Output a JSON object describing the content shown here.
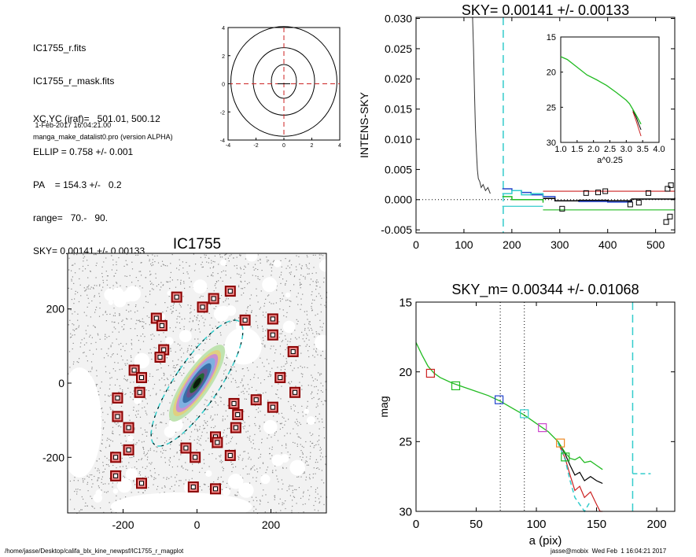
{
  "info": {
    "lines": [
      "IC1755_r.fits",
      "IC1755_r_mask.fits",
      "XC,YC (iraf)=   501.01, 500.12",
      "ELLIP = 0.758 +/- 0.001",
      "PA    = 154.3 +/-   0.2",
      "range=   70.-   90.",
      "SKY= 0.00141 +/- 0.00133"
    ],
    "date": " 1-Feb-2017 16:04:21.00",
    "program": "manga_make_datalist0.pro (version ALPHA)"
  },
  "footer": {
    "path": "/home/jasse/Desktop/califa_blx_kine_newpsf/IC1755_r_magplot",
    "user": "jasse@mobix  Wed Feb  1 16:04:21 2017"
  },
  "colors": {
    "black": "#000000",
    "red": "#cc2222",
    "cyan": "#33cccc",
    "green": "#22bb22",
    "blue": "#2244cc",
    "magenta": "#cc44cc",
    "orange": "#ee8822",
    "darkred": "#8b0000"
  },
  "chart_data": [
    {
      "id": "contour",
      "type": "contour",
      "xlim": [
        -4,
        4
      ],
      "ylim": [
        -4,
        4
      ],
      "xticks": [
        "-4",
        "-2",
        "0",
        "2",
        "4"
      ],
      "yticks": [
        "-4",
        "-2",
        "0",
        "2",
        "4"
      ],
      "ellipses": [
        {
          "rx": 0.9,
          "ry": 1.2
        },
        {
          "rx": 2.2,
          "ry": 2.4
        },
        {
          "rx": 3.8,
          "ry": 3.9
        }
      ],
      "crosshair": [
        0,
        0
      ]
    },
    {
      "id": "sky",
      "type": "line",
      "title": "SKY= 0.00141 +/- 0.00133",
      "ylabel": "INTENS-SKY",
      "xlim": [
        0,
        540
      ],
      "ylim": [
        -0.0055,
        0.03
      ],
      "xticks": [
        "0",
        "100",
        "200",
        "300",
        "400",
        "500"
      ],
      "yticks": [
        "-0.005",
        "0.000",
        "0.005",
        "0.010",
        "0.015",
        "0.020",
        "0.025",
        "0.030"
      ],
      "drop_curve": {
        "x": [
          118,
          120,
          122,
          124,
          126,
          128,
          130,
          133,
          136,
          140,
          145,
          150,
          155
        ],
        "y": [
          0.0305,
          0.025,
          0.018,
          0.012,
          0.008,
          0.005,
          0.0035,
          0.003,
          0.002,
          0.0025,
          0.0015,
          0.002,
          0.001
        ]
      },
      "sky_vline": 182,
      "profiles": [
        {
          "color": "blue",
          "x": [
            180,
            200,
            220,
            240,
            265,
            290,
            340,
            400,
            440,
            450
          ],
          "y": [
            0.0018,
            0.0015,
            0.0012,
            0.0008,
            0.0005,
            -0.0002,
            -0.0003,
            -0.0004,
            -0.0003,
            0.0
          ]
        },
        {
          "color": "cyan",
          "x": [
            180,
            200,
            220,
            240,
            265
          ],
          "y": [
            0.001,
            0.0015,
            0.0008,
            0.001,
            0.0005
          ]
        },
        {
          "color": "black",
          "x": [
            265,
            290,
            340,
            400,
            450,
            540
          ],
          "y": [
            0.0002,
            -0.0002,
            -0.0001,
            -0.0002,
            0.0001,
            0.0003
          ]
        },
        {
          "color": "green",
          "x": [
            180,
            200,
            265
          ],
          "y": [
            0.0005,
            0.0,
            -0.0005
          ]
        }
      ],
      "hlines": [
        {
          "color": "red",
          "y": 0.0014,
          "x": [
            265,
            540
          ]
        },
        {
          "color": "green",
          "y": -0.0017,
          "x": [
            265,
            540
          ]
        },
        {
          "color": "cyan",
          "y": -0.0011,
          "x": [
            180,
            265
          ]
        }
      ],
      "squares": [
        [
          395,
          0.0014
        ],
        [
          485,
          0.0011
        ],
        [
          525,
          0.0018
        ],
        [
          532,
          0.0024
        ],
        [
          447,
          -0.0008
        ],
        [
          380,
          0.0012
        ],
        [
          355,
          0.0011
        ],
        [
          305,
          -0.0015
        ],
        [
          465,
          -0.0005
        ],
        [
          530,
          -0.0028
        ],
        [
          522,
          -0.0037
        ]
      ],
      "inset": {
        "xlabel": "a^0.25",
        "xlim": [
          1.0,
          4.0
        ],
        "ylim": [
          15,
          30
        ],
        "xticks": [
          "1.0",
          "1.5",
          "2.0",
          "2.5",
          "3.0",
          "3.5",
          "4.0"
        ],
        "yticks": [
          "15",
          "20",
          "25",
          "30"
        ],
        "x": [
          1.0,
          1.2,
          1.5,
          1.8,
          2.1,
          2.4,
          2.7,
          3.0,
          3.1,
          3.2,
          3.3,
          3.38,
          3.45
        ],
        "y": [
          17.8,
          18.2,
          19.3,
          20.4,
          21.1,
          21.9,
          22.9,
          24.0,
          24.5,
          25.3,
          26.1,
          26.8,
          27.4
        ],
        "tail_red": {
          "x": [
            3.2,
            3.3,
            3.38,
            3.45
          ],
          "y": [
            25.6,
            26.9,
            28.1,
            29.1
          ]
        },
        "tail_black": {
          "x": [
            3.2,
            3.3,
            3.38,
            3.45
          ],
          "y": [
            25.4,
            26.4,
            27.4,
            28.2
          ]
        }
      }
    },
    {
      "id": "image",
      "type": "scatter",
      "title": "IC1755",
      "xlim": [
        -350,
        350
      ],
      "ylim": [
        -350,
        350
      ],
      "xticks": [
        "-200",
        "0",
        "200"
      ],
      "yticks": [
        "200",
        "0",
        "-200"
      ],
      "galaxy": {
        "x": 0,
        "y": 0,
        "a": 120,
        "b": 30,
        "pa": 154.3
      },
      "mask_hole": {
        "x": 125,
        "y": 100,
        "r": 50
      },
      "squares": [
        [
          -55,
          232
        ],
        [
          15,
          205
        ],
        [
          45,
          228
        ],
        [
          90,
          248
        ],
        [
          -110,
          175
        ],
        [
          -95,
          155
        ],
        [
          130,
          170
        ],
        [
          205,
          173
        ],
        [
          205,
          130
        ],
        [
          -90,
          90
        ],
        [
          -100,
          70
        ],
        [
          260,
          85
        ],
        [
          -170,
          35
        ],
        [
          -150,
          15
        ],
        [
          -155,
          -25
        ],
        [
          225,
          15
        ],
        [
          265,
          -25
        ],
        [
          -215,
          -40
        ],
        [
          -215,
          -90
        ],
        [
          -185,
          -120
        ],
        [
          100,
          -55
        ],
        [
          110,
          -85
        ],
        [
          105,
          -120
        ],
        [
          160,
          -45
        ],
        [
          205,
          -65
        ],
        [
          -185,
          -180
        ],
        [
          -220,
          -200
        ],
        [
          -30,
          -175
        ],
        [
          -5,
          -200
        ],
        [
          50,
          -145
        ],
        [
          55,
          -160
        ],
        [
          90,
          -195
        ],
        [
          -220,
          -250
        ],
        [
          -150,
          -270
        ],
        [
          -10,
          -280
        ],
        [
          50,
          -285
        ]
      ]
    },
    {
      "id": "mag",
      "type": "line",
      "title": "SKY_m=  0.00344 +/- 0.01068",
      "xlabel": "a (pix)",
      "ylabel": "mag",
      "xlim": [
        0,
        215
      ],
      "ylim": [
        30,
        15
      ],
      "xticks": [
        "0",
        "50",
        "100",
        "150",
        "200"
      ],
      "yticks": [
        "15",
        "20",
        "25",
        "30"
      ],
      "vlines_dotted": [
        70,
        90
      ],
      "vline_dashed": 180,
      "green": {
        "x": [
          0,
          5,
          10,
          15,
          20,
          30,
          40,
          50,
          60,
          70,
          80,
          90,
          100,
          110,
          118,
          124,
          128,
          132,
          136,
          140,
          145,
          150,
          155
        ],
        "y": [
          17.9,
          18.8,
          19.6,
          20.1,
          20.4,
          20.8,
          21.1,
          21.4,
          21.7,
          22.1,
          22.6,
          23.1,
          23.7,
          24.3,
          25.0,
          25.8,
          26.2,
          26.3,
          26.1,
          26.5,
          26.4,
          26.7,
          27.0
        ]
      },
      "black": {
        "x": [
          118,
          124,
          128,
          132,
          136,
          140,
          145,
          150,
          155
        ],
        "y": [
          25.0,
          25.9,
          26.7,
          27.4,
          27.2,
          27.8,
          27.5,
          27.8,
          28.0
        ]
      },
      "red": {
        "x": [
          118,
          124,
          128,
          132,
          136,
          140,
          145,
          150,
          153,
          155
        ],
        "y": [
          25.1,
          26.2,
          27.4,
          28.5,
          28.2,
          29.0,
          28.6,
          29.5,
          30.0,
          30.1
        ]
      },
      "cyan_dashed": {
        "x": [
          118,
          124,
          128,
          132,
          136,
          140,
          144
        ],
        "y": [
          25.1,
          26.3,
          27.8,
          29.0,
          29.5,
          30.1,
          29.4
        ]
      },
      "cyan_sky": {
        "x": [
          180,
          195
        ],
        "y": [
          27.3,
          27.3
        ]
      },
      "squares": [
        {
          "x": 12,
          "y": 20.1,
          "color": "red"
        },
        {
          "x": 33,
          "y": 21.0,
          "color": "green"
        },
        {
          "x": 69,
          "y": 22.0,
          "color": "blue"
        },
        {
          "x": 90,
          "y": 23.0,
          "color": "cyan"
        },
        {
          "x": 105,
          "y": 24.0,
          "color": "magenta"
        },
        {
          "x": 120,
          "y": 25.1,
          "color": "orange"
        },
        {
          "x": 124,
          "y": 26.1,
          "color": "green"
        }
      ]
    }
  ]
}
